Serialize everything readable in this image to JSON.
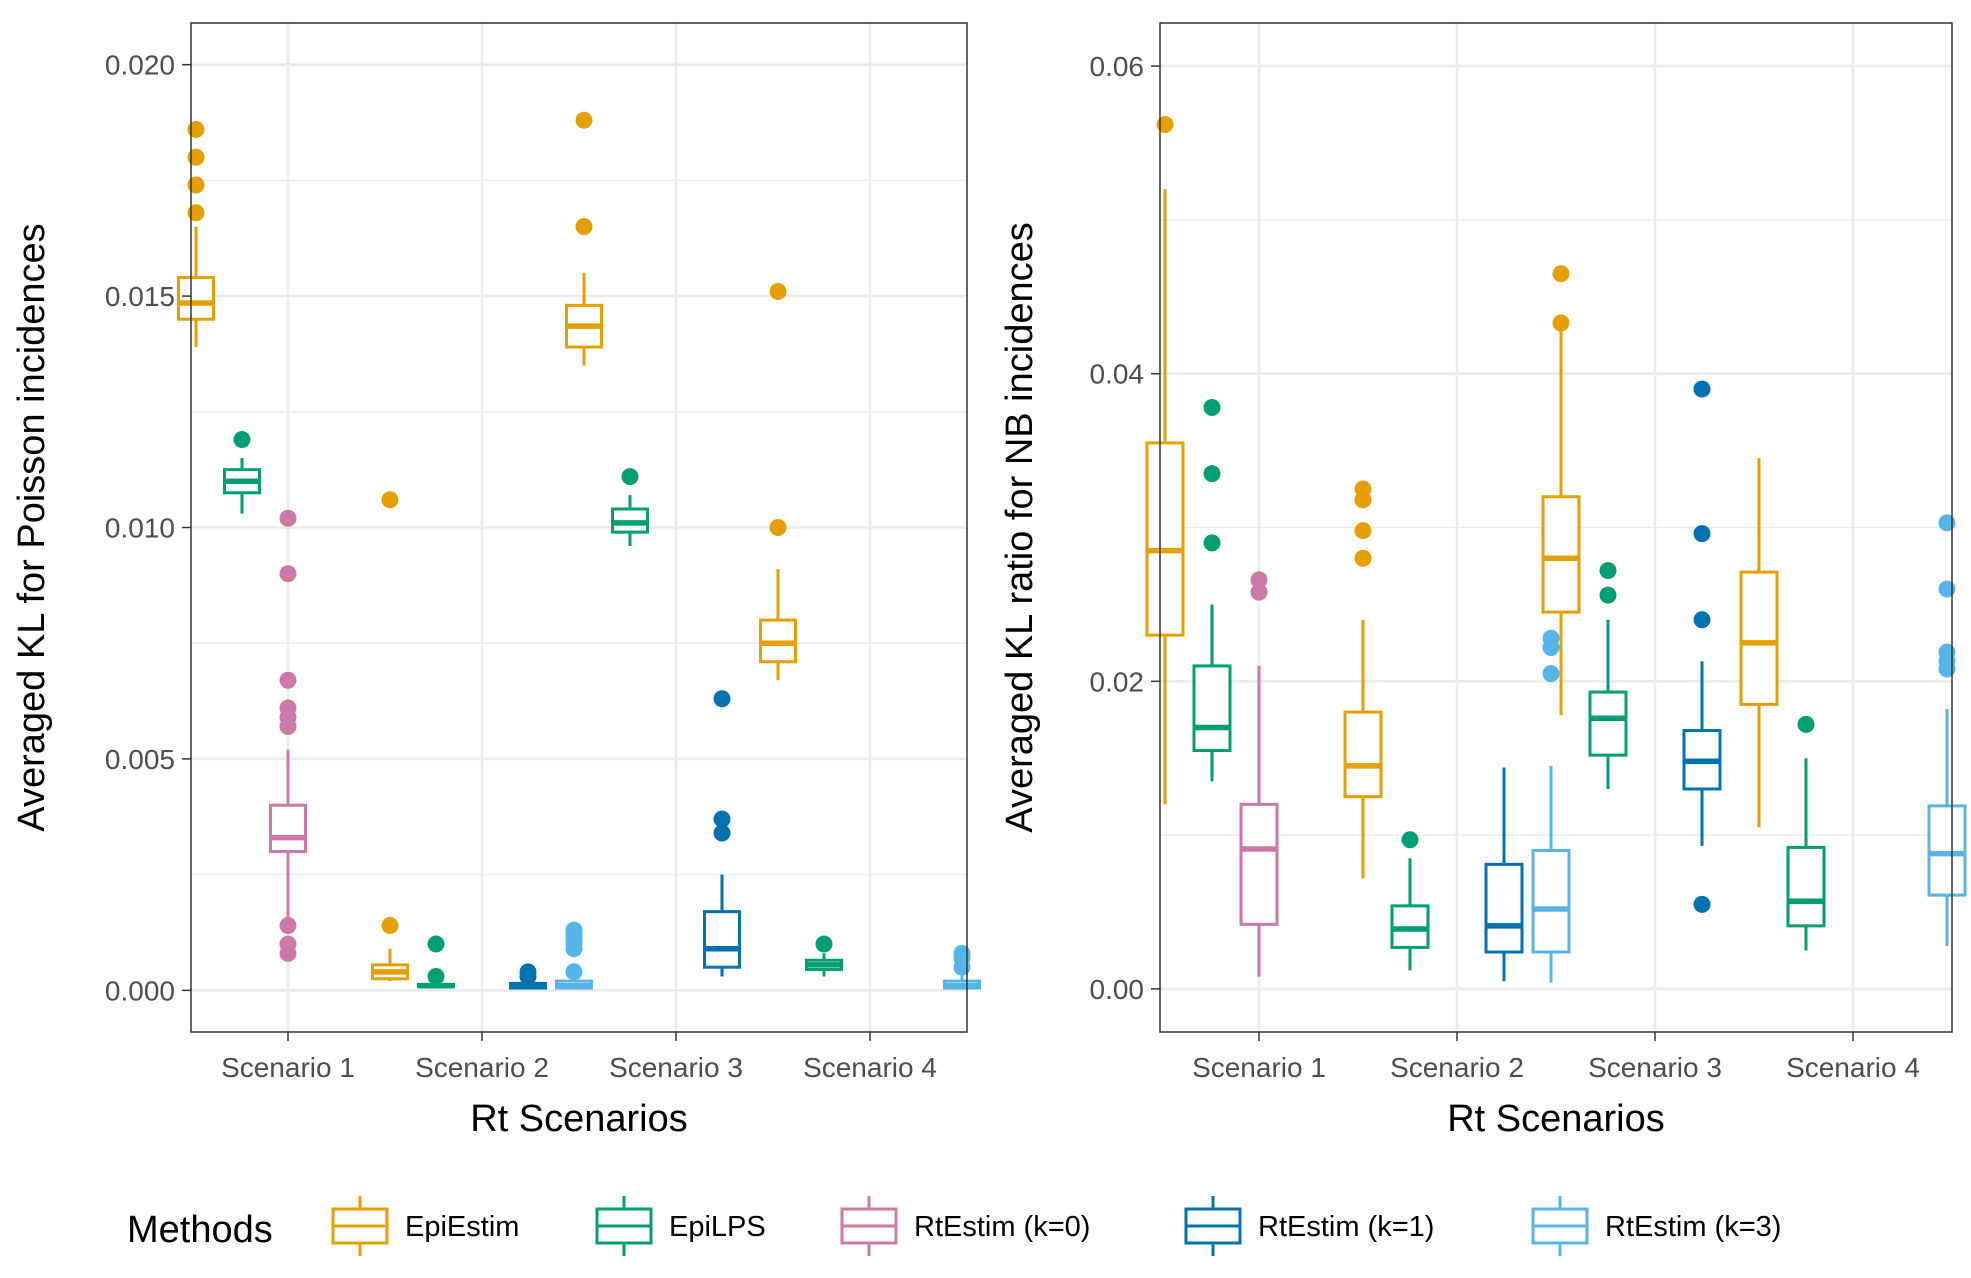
{
  "chart_data": [
    {
      "type": "boxplot",
      "xlabel": "Rt Scenarios",
      "ylabel": "Averaged KL for Poisson incidences",
      "ylim": [
        -0.0009,
        0.0209
      ],
      "yticks": [
        "0.000",
        "0.005",
        "0.010",
        "0.015",
        "0.020"
      ],
      "categories": [
        "Scenario 1",
        "Scenario 2",
        "Scenario 3",
        "Scenario 4"
      ],
      "grid": true,
      "series": [
        {
          "name": "EpiEstim",
          "boxes": [
            {
              "category": "Scenario 1",
              "lower_whisker": 0.0139,
              "q1": 0.0145,
              "median": 0.01485,
              "q3": 0.0154,
              "upper_whisker": 0.0165,
              "outliers": [
                0.0186,
                0.018,
                0.0174,
                0.0168
              ]
            },
            {
              "category": "Scenario 2",
              "lower_whisker": 0.0002,
              "q1": 0.00025,
              "median": 0.0004,
              "q3": 0.00055,
              "upper_whisker": 0.0009,
              "outliers": [
                0.0106,
                0.0014
              ]
            },
            {
              "category": "Scenario 3",
              "lower_whisker": 0.0135,
              "q1": 0.0139,
              "median": 0.01435,
              "q3": 0.0148,
              "upper_whisker": 0.0155,
              "outliers": [
                0.0188,
                0.0165
              ]
            },
            {
              "category": "Scenario 4",
              "lower_whisker": 0.0067,
              "q1": 0.0071,
              "median": 0.0075,
              "q3": 0.008,
              "upper_whisker": 0.0091,
              "outliers": [
                0.0151,
                0.01
              ]
            }
          ]
        },
        {
          "name": "EpiLPS",
          "boxes": [
            {
              "category": "Scenario 1",
              "lower_whisker": 0.0103,
              "q1": 0.01075,
              "median": 0.011,
              "q3": 0.01125,
              "upper_whisker": 0.0115,
              "outliers": [
                0.0119
              ]
            },
            {
              "category": "Scenario 2",
              "lower_whisker": 5e-05,
              "q1": 8e-05,
              "median": 0.0001,
              "q3": 0.00013,
              "upper_whisker": 0.0002,
              "outliers": [
                0.001,
                0.0003
              ]
            },
            {
              "category": "Scenario 3",
              "lower_whisker": 0.0096,
              "q1": 0.0099,
              "median": 0.0101,
              "q3": 0.0104,
              "upper_whisker": 0.0107,
              "outliers": [
                0.0111
              ]
            },
            {
              "category": "Scenario 4",
              "lower_whisker": 0.0003,
              "q1": 0.00045,
              "median": 0.00055,
              "q3": 0.00065,
              "upper_whisker": 0.0008,
              "outliers": [
                0.001
              ]
            }
          ]
        },
        {
          "name": "RtEstim (k=0)",
          "boxes": [
            {
              "category": "Scenario 1",
              "lower_whisker": 0.0015,
              "q1": 0.003,
              "median": 0.0033,
              "q3": 0.004,
              "upper_whisker": 0.0052,
              "outliers": [
                0.0102,
                0.009,
                0.0067,
                0.0061,
                0.0059,
                0.0057,
                0.0014,
                0.001,
                0.0008
              ]
            }
          ]
        },
        {
          "name": "RtEstim (k=1)",
          "boxes": [
            {
              "category": "Scenario 2",
              "lower_whisker": 3e-05,
              "q1": 5e-05,
              "median": 0.0001,
              "q3": 0.00015,
              "upper_whisker": 0.0002,
              "outliers": [
                0.0003,
                0.0004
              ]
            },
            {
              "category": "Scenario 3",
              "lower_whisker": 0.0003,
              "q1": 0.0005,
              "median": 0.0009,
              "q3": 0.0017,
              "upper_whisker": 0.0025,
              "outliers": [
                0.0063,
                0.0037,
                0.0034
              ]
            }
          ]
        },
        {
          "name": "RtEstim (k=3)",
          "boxes": [
            {
              "category": "Scenario 2",
              "lower_whisker": 3e-05,
              "q1": 5e-05,
              "median": 0.0001,
              "q3": 0.0002,
              "upper_whisker": 0.0003,
              "outliers": [
                0.0013,
                0.0012,
                0.0011,
                0.001,
                0.0009,
                0.0004
              ]
            },
            {
              "category": "Scenario 4",
              "lower_whisker": 3e-05,
              "q1": 5e-05,
              "median": 0.0001,
              "q3": 0.0002,
              "upper_whisker": 0.0004,
              "outliers": [
                0.0008,
                0.0007,
                0.0005
              ]
            }
          ]
        }
      ]
    },
    {
      "type": "boxplot",
      "xlabel": "Rt Scenarios",
      "ylabel": "Averaged KL ratio for NB incidences",
      "ylim": [
        -0.0028,
        0.0628
      ],
      "yticks": [
        "0.00",
        "0.02",
        "0.04",
        "0.06"
      ],
      "categories": [
        "Scenario 1",
        "Scenario 2",
        "Scenario 3",
        "Scenario 4"
      ],
      "grid": true,
      "series": [
        {
          "name": "EpiEstim",
          "boxes": [
            {
              "category": "Scenario 1",
              "lower_whisker": 0.012,
              "q1": 0.023,
              "median": 0.0285,
              "q3": 0.0355,
              "upper_whisker": 0.052,
              "outliers": [
                0.0562
              ]
            },
            {
              "category": "Scenario 2",
              "lower_whisker": 0.0072,
              "q1": 0.0125,
              "median": 0.0145,
              "q3": 0.018,
              "upper_whisker": 0.024,
              "outliers": [
                0.0325,
                0.0318,
                0.0298,
                0.028
              ]
            },
            {
              "category": "Scenario 3",
              "lower_whisker": 0.0178,
              "q1": 0.0245,
              "median": 0.028,
              "q3": 0.032,
              "upper_whisker": 0.043,
              "outliers": [
                0.0465,
                0.0433
              ]
            },
            {
              "category": "Scenario 4",
              "lower_whisker": 0.0105,
              "q1": 0.0185,
              "median": 0.0225,
              "q3": 0.0271,
              "upper_whisker": 0.0345,
              "outliers": []
            }
          ]
        },
        {
          "name": "EpiLPS",
          "boxes": [
            {
              "category": "Scenario 1",
              "lower_whisker": 0.0135,
              "q1": 0.0155,
              "median": 0.017,
              "q3": 0.021,
              "upper_whisker": 0.025,
              "outliers": [
                0.0378,
                0.0335,
                0.029
              ]
            },
            {
              "category": "Scenario 2",
              "lower_whisker": 0.0012,
              "q1": 0.0027,
              "median": 0.0039,
              "q3": 0.0054,
              "upper_whisker": 0.0085,
              "outliers": [
                0.0097
              ]
            },
            {
              "category": "Scenario 3",
              "lower_whisker": 0.013,
              "q1": 0.0152,
              "median": 0.0176,
              "q3": 0.0193,
              "upper_whisker": 0.024,
              "outliers": [
                0.0272,
                0.0256
              ]
            },
            {
              "category": "Scenario 4",
              "lower_whisker": 0.0025,
              "q1": 0.0041,
              "median": 0.0057,
              "q3": 0.0092,
              "upper_whisker": 0.015,
              "outliers": [
                0.0172
              ]
            }
          ]
        },
        {
          "name": "RtEstim (k=0)",
          "boxes": [
            {
              "category": "Scenario 1",
              "lower_whisker": 0.0008,
              "q1": 0.0042,
              "median": 0.0091,
              "q3": 0.012,
              "upper_whisker": 0.021,
              "outliers": [
                0.0266,
                0.0258
              ]
            }
          ]
        },
        {
          "name": "RtEstim (k=1)",
          "boxes": [
            {
              "category": "Scenario 2",
              "lower_whisker": 0.0005,
              "q1": 0.0024,
              "median": 0.0041,
              "q3": 0.0081,
              "upper_whisker": 0.0144,
              "outliers": []
            },
            {
              "category": "Scenario 3",
              "lower_whisker": 0.0093,
              "q1": 0.013,
              "median": 0.0148,
              "q3": 0.0168,
              "upper_whisker": 0.0213,
              "outliers": [
                0.039,
                0.0296,
                0.024,
                0.0055
              ]
            }
          ]
        },
        {
          "name": "RtEstim (k=3)",
          "boxes": [
            {
              "category": "Scenario 2",
              "lower_whisker": 0.0004,
              "q1": 0.0024,
              "median": 0.0052,
              "q3": 0.009,
              "upper_whisker": 0.0145,
              "outliers": [
                0.0228,
                0.0222,
                0.0205
              ]
            },
            {
              "category": "Scenario 4",
              "lower_whisker": 0.0028,
              "q1": 0.0061,
              "median": 0.0088,
              "q3": 0.0119,
              "upper_whisker": 0.0182,
              "outliers": [
                0.0303,
                0.026,
                0.0219,
                0.0213,
                0.0208
              ]
            }
          ]
        }
      ]
    }
  ],
  "legend": {
    "title": "Methods",
    "placement": "bottom",
    "items": [
      {
        "label": "EpiEstim",
        "color": "#E69F00"
      },
      {
        "label": "EpiLPS",
        "color": "#009E73"
      },
      {
        "label": "RtEstim (k=0)",
        "color": "#CC79A7"
      },
      {
        "label": "RtEstim (k=1)",
        "color": "#0072B2"
      },
      {
        "label": "RtEstim (k=3)",
        "color": "#56B4E9"
      }
    ]
  }
}
